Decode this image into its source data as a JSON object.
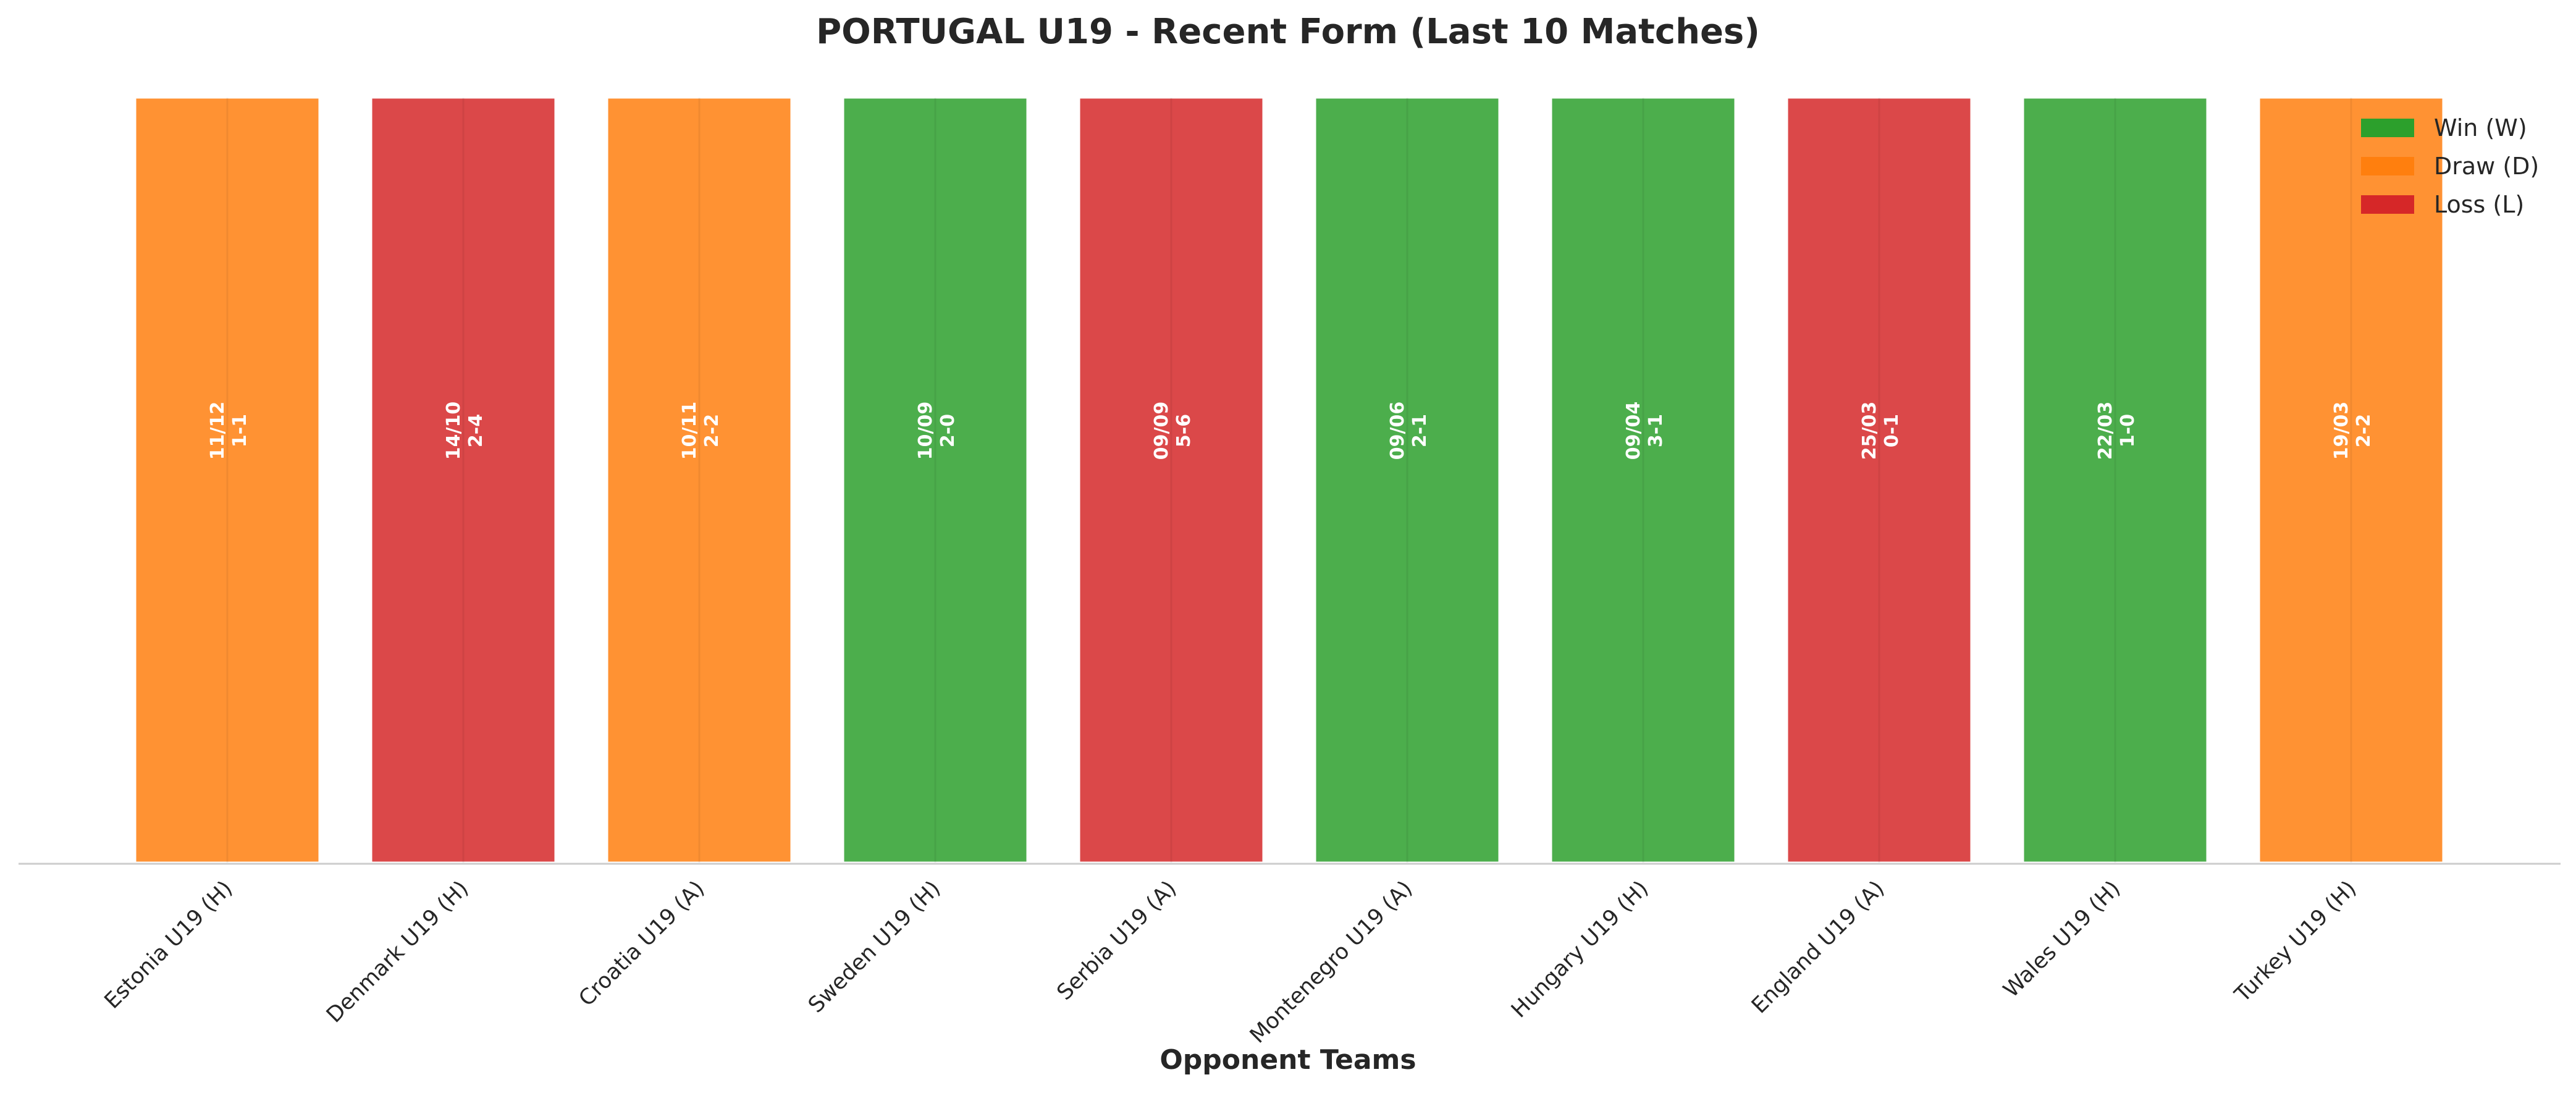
{
  "chart_data": {
    "type": "bar",
    "title": "PORTUGAL U19 - Recent Form (Last 10 Matches)",
    "xlabel": "Opponent Teams",
    "ylabel": "",
    "ylim": [
      0,
      1
    ],
    "grid": false,
    "legend_position": "top-right",
    "categories": [
      "Estonia U19 (H)",
      "Denmark U19 (H)",
      "Croatia U19 (A)",
      "Sweden U19 (H)",
      "Serbia U19 (A)",
      "Montenegro U19 (A)",
      "Hungary U19 (H)",
      "England U19 (A)",
      "Wales U19 (H)",
      "Turkey U19 (H)"
    ],
    "values": [
      1,
      1,
      1,
      1,
      1,
      1,
      1,
      1,
      1,
      1
    ],
    "results": [
      "D",
      "L",
      "D",
      "W",
      "L",
      "W",
      "W",
      "L",
      "W",
      "D"
    ],
    "dates": [
      "11/12",
      "14/10",
      "10/11",
      "10/09",
      "09/09",
      "09/06",
      "09/04",
      "25/03",
      "22/03",
      "19/03"
    ],
    "scores": [
      "1-1",
      "2-4",
      "2-2",
      "2-0",
      "5-6",
      "2-1",
      "3-1",
      "0-1",
      "1-0",
      "2-2"
    ],
    "legend": [
      {
        "key": "W",
        "label": "Win (W)",
        "color": "#2ca02c"
      },
      {
        "key": "D",
        "label": "Draw (D)",
        "color": "#ff7f0e"
      },
      {
        "key": "L",
        "label": "Loss (L)",
        "color": "#d62728"
      }
    ],
    "bar_colors": {
      "W": "#4cae4c",
      "D": "#ff9233",
      "L": "#db4849"
    }
  }
}
